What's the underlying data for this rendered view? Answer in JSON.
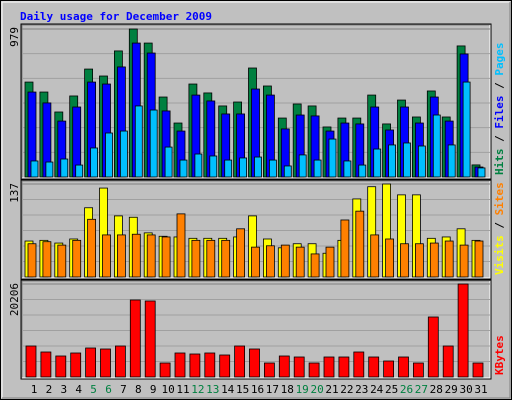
{
  "chart_data": [
    {
      "type": "bar",
      "title": "Daily usage for December 2009",
      "ylim": [
        0,
        979
      ],
      "yticks": [
        979
      ],
      "series": [
        {
          "name": "Hits",
          "color": "#008040",
          "values": [
            628,
            562,
            430,
            536,
            714,
            668,
            834,
            979,
            886,
            529,
            357,
            615,
            556,
            470,
            496,
            721,
            602,
            390,
            483,
            470,
            331,
            390,
            390,
            542,
            351,
            509,
            397,
            569,
            397,
            867,
            80
          ]
        },
        {
          "name": "Files",
          "color": "#0000ff",
          "values": [
            562,
            490,
            370,
            463,
            628,
            615,
            728,
            886,
            820,
            437,
            304,
            542,
            503,
            417,
            417,
            582,
            542,
            318,
            410,
            404,
            304,
            357,
            351,
            463,
            311,
            463,
            357,
            529,
            370,
            814,
            66
          ]
        },
        {
          "name": "Pages",
          "color": "#00c0ff",
          "values": [
            106,
            99,
            119,
            79,
            192,
            291,
            304,
            470,
            443,
            198,
            112,
            152,
            139,
            112,
            126,
            132,
            112,
            73,
            146,
            112,
            251,
            106,
            79,
            185,
            212,
            225,
            205,
            410,
            212,
            628,
            60
          ]
        }
      ]
    },
    {
      "type": "bar",
      "ylim": [
        0,
        137
      ],
      "yticks": [
        137
      ],
      "series": [
        {
          "name": "Visits",
          "color": "#ffff00",
          "values": [
            53,
            54,
            50,
            56,
            102,
            131,
            90,
            88,
            65,
            60,
            59,
            57,
            57,
            57,
            59,
            90,
            56,
            43,
            49,
            49,
            35,
            54,
            115,
            133,
            137,
            121,
            121,
            57,
            59,
            71,
            54
          ]
        },
        {
          "name": "Sites",
          "color": "#ff8000",
          "values": [
            49,
            52,
            47,
            54,
            85,
            62,
            62,
            63,
            62,
            59,
            93,
            54,
            54,
            54,
            71,
            44,
            46,
            47,
            44,
            34,
            44,
            84,
            97,
            62,
            56,
            49,
            49,
            50,
            53,
            47,
            53
          ]
        }
      ]
    },
    {
      "type": "bar",
      "ylim": [
        0,
        20206
      ],
      "yticks": [
        20206
      ],
      "series": [
        {
          "name": "KBytes",
          "color": "#ff0000",
          "values": [
            6736,
            5432,
            4563,
            5215,
            6302,
            6084,
            6736,
            16732,
            16515,
            3042,
            5215,
            4998,
            5215,
            4781,
            6736,
            6084,
            3042,
            4563,
            4346,
            3042,
            4346,
            4346,
            5432,
            4346,
            3477,
            4346,
            3042,
            13038,
            6736,
            20206,
            3042
          ]
        }
      ],
      "categories": [
        "1",
        "2",
        "3",
        "4",
        "5",
        "6",
        "7",
        "8",
        "9",
        "10",
        "11",
        "12",
        "13",
        "14",
        "15",
        "16",
        "17",
        "18",
        "19",
        "20",
        "21",
        "22",
        "23",
        "24",
        "25",
        "26",
        "27",
        "28",
        "29",
        "30",
        "31"
      ],
      "category_colors": [
        "#000000",
        "#000000",
        "#000000",
        "#000000",
        "#008040",
        "#008040",
        "#000000",
        "#000000",
        "#000000",
        "#000000",
        "#000000",
        "#008040",
        "#008040",
        "#000000",
        "#000000",
        "#000000",
        "#000000",
        "#000000",
        "#008040",
        "#008040",
        "#000000",
        "#000000",
        "#000000",
        "#000000",
        "#000000",
        "#008040",
        "#008040",
        "#000000",
        "#000000",
        "#000000",
        "#000000"
      ]
    }
  ]
}
